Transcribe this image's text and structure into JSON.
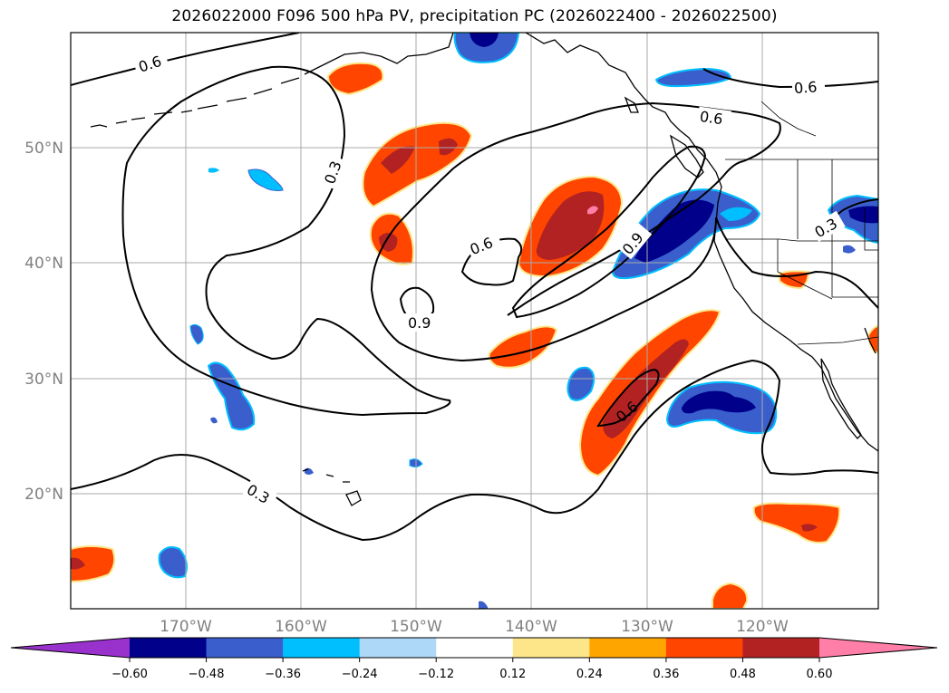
{
  "title": "2026022000 F096 500 hPa PV, precipitation PC (2026022400 - 2026022500)",
  "latitude_labels": [
    "50°N",
    "40°N",
    "30°N",
    "20°N"
  ],
  "longitude_labels": [
    "170°W",
    "160°W",
    "150°W",
    "140°W",
    "130°W",
    "120°W"
  ],
  "contour_labels": [
    "0.6",
    "0.6",
    "0.6",
    "0.3",
    "0.6",
    "0.9",
    "0.9",
    "0.3",
    "0.6",
    "0.3"
  ],
  "colorbar": {
    "tick_labels": [
      "−0.60",
      "−0.48",
      "−0.36",
      "−0.24",
      "−0.12",
      "0.12",
      "0.24",
      "0.36",
      "0.48",
      "0.60"
    ],
    "colors": [
      "#9932cc",
      "#00008b",
      "#3a5fcd",
      "#00bfff",
      "#add8f7",
      "#ffffff",
      "#fde68a",
      "#ffa500",
      "#ff4500",
      "#b22222",
      "#ff7fa8"
    ]
  },
  "fill_colors": {
    "dark_blue": "#00008b",
    "blue": "#3a5fcd",
    "cyan": "#00bfff",
    "light_blue": "#add8f7",
    "yellow": "#fde68a",
    "orange": "#ffa500",
    "red_orange": "#ff4500",
    "dark_red": "#b22222",
    "pink": "#ff7fa8"
  }
}
